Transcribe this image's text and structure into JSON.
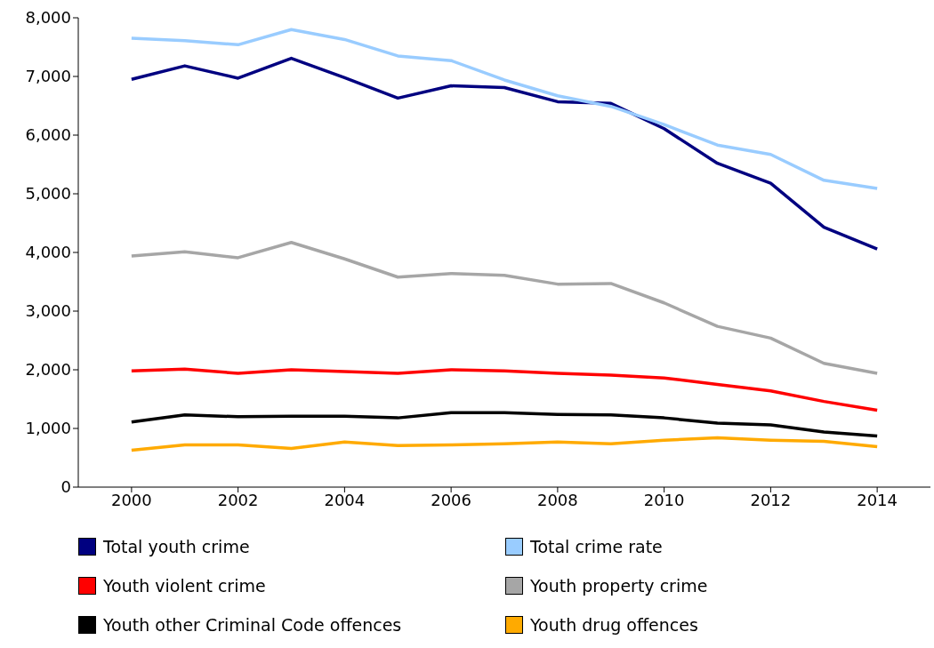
{
  "chart_data": {
    "type": "line",
    "x": [
      2000,
      2001,
      2002,
      2003,
      2004,
      2005,
      2006,
      2007,
      2008,
      2009,
      2010,
      2011,
      2012,
      2013,
      2014
    ],
    "series": [
      {
        "name": "Total youth crime",
        "color": "#000080",
        "values": [
          6950,
          7180,
          6970,
          7310,
          6980,
          6630,
          6840,
          6810,
          6570,
          6540,
          6110,
          5520,
          5180,
          4430,
          4060
        ]
      },
      {
        "name": "Total crime rate",
        "color": "#99ccff",
        "values": [
          7650,
          7610,
          7540,
          7800,
          7630,
          7350,
          7270,
          6940,
          6670,
          6490,
          6180,
          5830,
          5670,
          5230,
          5090
        ]
      },
      {
        "name": "Youth violent crime",
        "color": "#ff0000",
        "values": [
          1980,
          2010,
          1940,
          2000,
          1970,
          1940,
          2000,
          1980,
          1940,
          1910,
          1860,
          1750,
          1640,
          1460,
          1310
        ]
      },
      {
        "name": "Youth property crime",
        "color": "#a6a6a6",
        "values": [
          3940,
          4010,
          3910,
          4170,
          3890,
          3580,
          3640,
          3610,
          3460,
          3470,
          3140,
          2740,
          2540,
          2110,
          1940
        ]
      },
      {
        "name": "Youth other Criminal Code offences",
        "color": "#000000",
        "values": [
          1110,
          1230,
          1200,
          1210,
          1210,
          1180,
          1270,
          1270,
          1240,
          1230,
          1180,
          1090,
          1060,
          940,
          870
        ]
      },
      {
        "name": "Youth drug offences",
        "color": "#ffaa00",
        "values": [
          630,
          720,
          720,
          660,
          770,
          710,
          720,
          740,
          770,
          740,
          800,
          840,
          800,
          780,
          690
        ]
      }
    ],
    "xlim": [
      1999,
      2015
    ],
    "xticks": [
      2000,
      2002,
      2004,
      2006,
      2008,
      2010,
      2012,
      2014
    ],
    "ylim": [
      0,
      8000
    ],
    "yticks": [
      0,
      {
        "value": 1000,
        "label": "1,000"
      },
      {
        "value": 2000,
        "label": "2,000"
      },
      {
        "value": 3000,
        "label": "3,000"
      },
      {
        "value": 4000,
        "label": "4,000"
      },
      {
        "value": 5000,
        "label": "5,000"
      },
      {
        "value": 6000,
        "label": "6,000"
      },
      {
        "value": 7000,
        "label": "7,000"
      },
      {
        "value": 8000,
        "label": "8,000"
      }
    ],
    "grid": false,
    "legend": "bottom",
    "marker": "none",
    "line_style": "solid"
  }
}
